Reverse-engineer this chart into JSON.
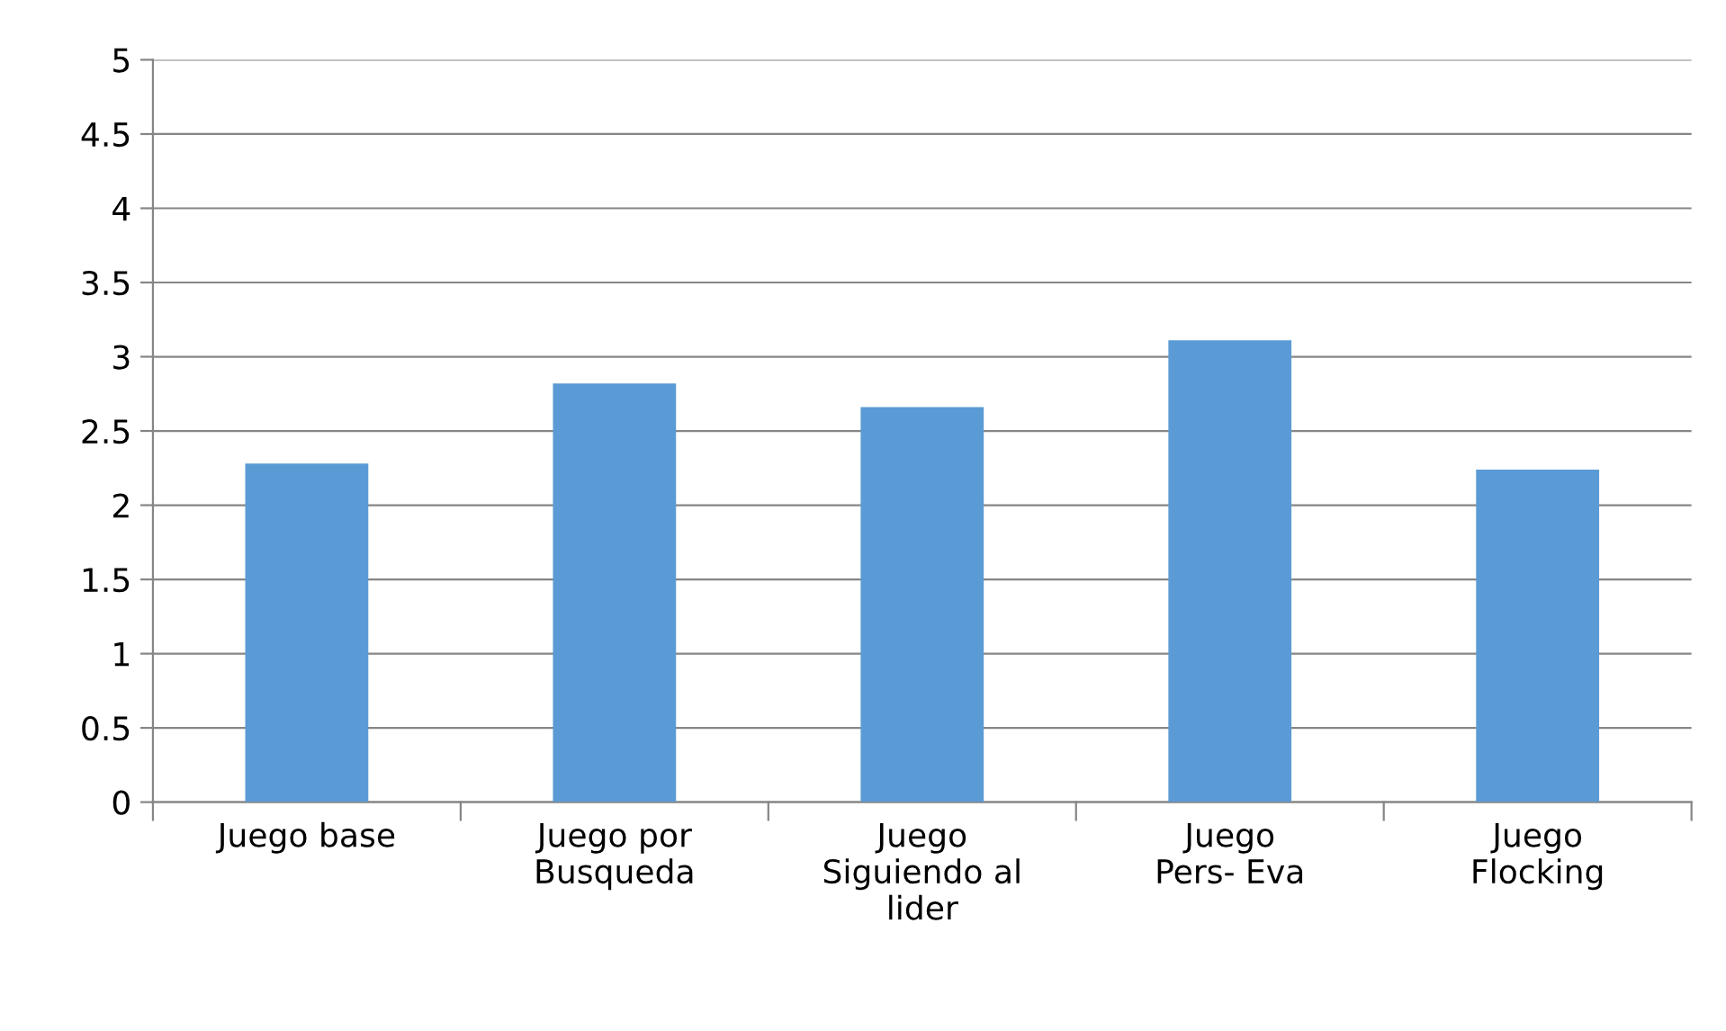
{
  "chart_data": {
    "type": "bar",
    "categories": [
      "Juego base",
      "Juego por\nBusqueda",
      "Juego\nSiguiendo al\nlider",
      "Juego\nPers- Eva",
      "Juego\nFlocking"
    ],
    "values": [
      2.28,
      2.82,
      2.66,
      3.11,
      2.24
    ],
    "color": "#5b9bd5",
    "ylim": [
      0,
      5
    ],
    "yticks": [
      0,
      {
        "value": 0.5,
        "label": "0.5"
      },
      1,
      {
        "value": 1.5,
        "label": "1.5"
      },
      2,
      {
        "value": 2.5,
        "label": "2.5"
      },
      3,
      {
        "value": 3.5,
        "label": "3.5"
      },
      4,
      {
        "value": 4.5,
        "label": "4.5"
      },
      5
    ],
    "grid": "y"
  }
}
